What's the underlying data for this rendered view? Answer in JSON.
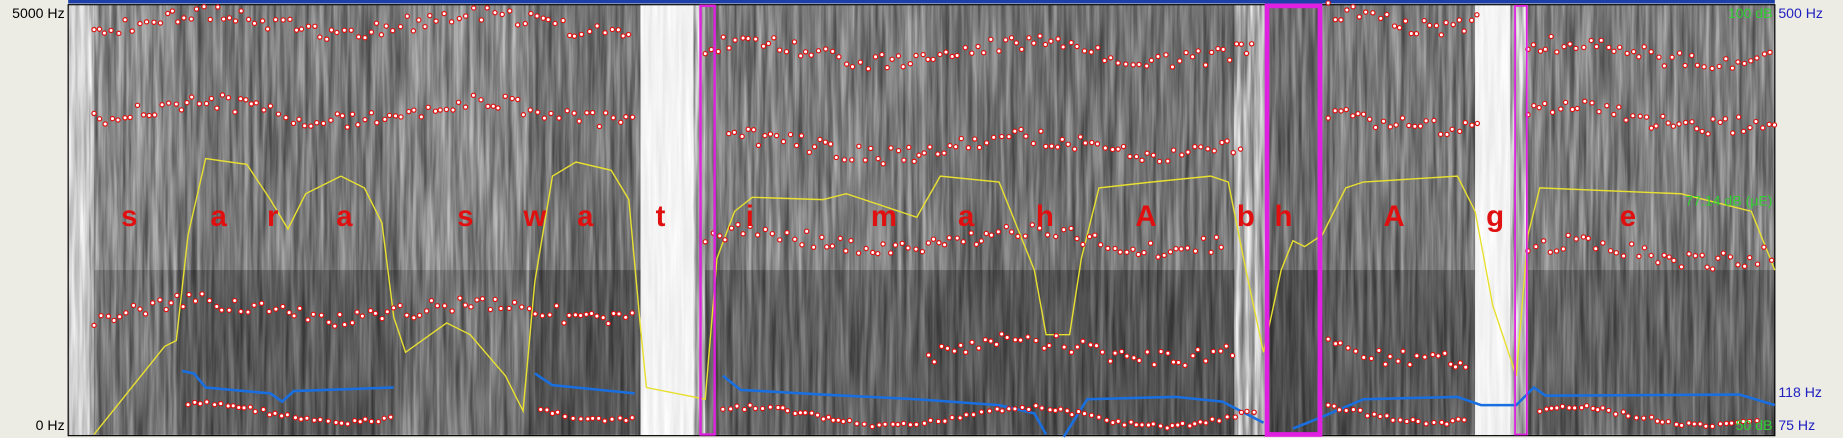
{
  "axis": {
    "left_top": "5000 Hz",
    "left_bottom": "0 Hz",
    "right_top_db": "100 dB",
    "right_top_hz": "500 Hz",
    "intensity_cursor": "77.14 dB (μE)",
    "pitch_cursor": "118 Hz",
    "right_bottom_db": "50 dB",
    "right_bottom_hz": "75 Hz"
  },
  "segments": [
    "s",
    "a",
    "r",
    "a",
    "s",
    "w",
    "a",
    "t",
    "i",
    "m",
    "a",
    "h",
    "A",
    "b",
    "h",
    "A",
    "g",
    "e"
  ]
}
